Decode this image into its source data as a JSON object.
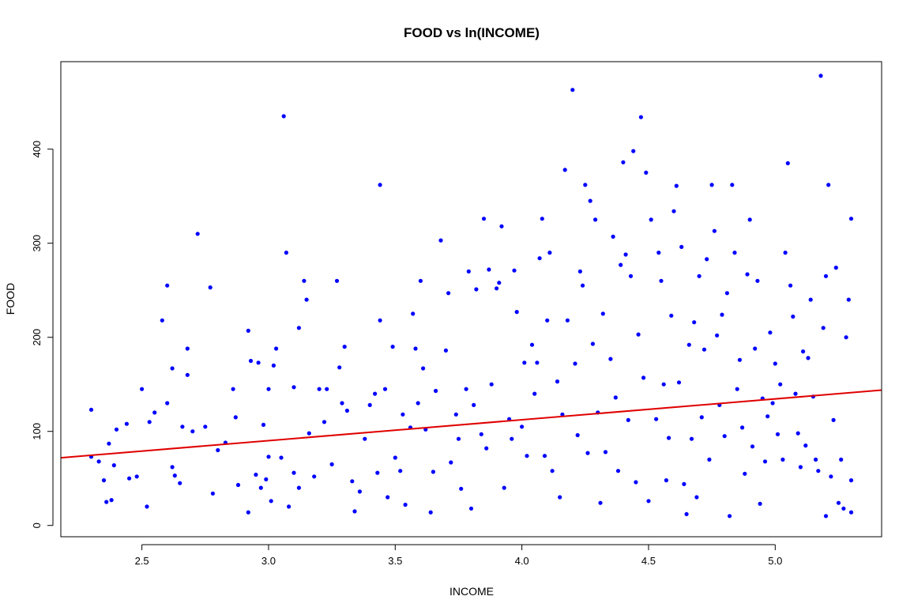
{
  "chart_data": {
    "type": "scatter",
    "title": "FOOD vs ln(INCOME)",
    "xlabel": "INCOME",
    "ylabel": "FOOD",
    "xlim": [
      2.18,
      5.42
    ],
    "ylim": [
      -12,
      493
    ],
    "x_ticks": [
      "2.5",
      "3.0",
      "3.5",
      "4.0",
      "4.5",
      "5.0"
    ],
    "y_ticks": [
      "0",
      "100",
      "200",
      "300",
      "400"
    ],
    "grid": false,
    "legend": "none",
    "point_color": "#0000ff",
    "fit_line": {
      "color": "#e00000",
      "intercept": 23.57,
      "slope": 22.19
    },
    "points": [
      [
        2.3,
        123
      ],
      [
        2.3,
        73
      ],
      [
        2.33,
        68
      ],
      [
        2.35,
        48
      ],
      [
        2.36,
        25
      ],
      [
        2.37,
        87
      ],
      [
        2.38,
        27
      ],
      [
        2.39,
        64
      ],
      [
        2.4,
        102
      ],
      [
        2.44,
        108
      ],
      [
        2.45,
        50
      ],
      [
        2.48,
        52
      ],
      [
        2.5,
        145
      ],
      [
        2.52,
        20
      ],
      [
        2.53,
        110
      ],
      [
        2.55,
        120
      ],
      [
        2.58,
        218
      ],
      [
        2.6,
        255
      ],
      [
        2.6,
        130
      ],
      [
        2.62,
        167
      ],
      [
        2.62,
        62
      ],
      [
        2.63,
        53
      ],
      [
        2.65,
        45
      ],
      [
        2.66,
        105
      ],
      [
        2.68,
        188
      ],
      [
        2.68,
        160
      ],
      [
        2.7,
        100
      ],
      [
        2.72,
        310
      ],
      [
        2.75,
        105
      ],
      [
        2.77,
        253
      ],
      [
        2.78,
        34
      ],
      [
        2.8,
        80
      ],
      [
        2.83,
        88
      ],
      [
        2.86,
        145
      ],
      [
        2.87,
        115
      ],
      [
        2.88,
        43
      ],
      [
        2.92,
        207
      ],
      [
        2.92,
        14
      ],
      [
        2.93,
        175
      ],
      [
        2.95,
        54
      ],
      [
        2.96,
        173
      ],
      [
        2.97,
        40
      ],
      [
        2.98,
        107
      ],
      [
        2.99,
        49
      ],
      [
        3.0,
        73
      ],
      [
        3.0,
        145
      ],
      [
        3.01,
        26
      ],
      [
        3.02,
        170
      ],
      [
        3.03,
        188
      ],
      [
        3.05,
        72
      ],
      [
        3.06,
        435
      ],
      [
        3.07,
        290
      ],
      [
        3.08,
        20
      ],
      [
        3.1,
        147
      ],
      [
        3.1,
        56
      ],
      [
        3.12,
        210
      ],
      [
        3.12,
        40
      ],
      [
        3.14,
        260
      ],
      [
        3.15,
        240
      ],
      [
        3.16,
        98
      ],
      [
        3.18,
        52
      ],
      [
        3.2,
        145
      ],
      [
        3.22,
        110
      ],
      [
        3.23,
        145
      ],
      [
        3.25,
        65
      ],
      [
        3.27,
        260
      ],
      [
        3.28,
        168
      ],
      [
        3.29,
        130
      ],
      [
        3.3,
        190
      ],
      [
        3.31,
        122
      ],
      [
        3.33,
        47
      ],
      [
        3.34,
        15
      ],
      [
        3.36,
        36
      ],
      [
        3.38,
        92
      ],
      [
        3.4,
        128
      ],
      [
        3.42,
        140
      ],
      [
        3.43,
        56
      ],
      [
        3.44,
        362
      ],
      [
        3.44,
        218
      ],
      [
        3.46,
        145
      ],
      [
        3.47,
        30
      ],
      [
        3.49,
        190
      ],
      [
        3.5,
        72
      ],
      [
        3.52,
        58
      ],
      [
        3.53,
        118
      ],
      [
        3.54,
        22
      ],
      [
        3.56,
        104
      ],
      [
        3.57,
        225
      ],
      [
        3.58,
        188
      ],
      [
        3.59,
        130
      ],
      [
        3.6,
        260
      ],
      [
        3.61,
        167
      ],
      [
        3.62,
        102
      ],
      [
        3.64,
        14
      ],
      [
        3.65,
        57
      ],
      [
        3.66,
        143
      ],
      [
        3.68,
        303
      ],
      [
        3.7,
        186
      ],
      [
        3.71,
        247
      ],
      [
        3.72,
        67
      ],
      [
        3.74,
        118
      ],
      [
        3.75,
        92
      ],
      [
        3.76,
        39
      ],
      [
        3.78,
        145
      ],
      [
        3.79,
        270
      ],
      [
        3.8,
        18
      ],
      [
        3.81,
        128
      ],
      [
        3.82,
        251
      ],
      [
        3.84,
        97
      ],
      [
        3.85,
        326
      ],
      [
        3.86,
        82
      ],
      [
        3.87,
        272
      ],
      [
        3.88,
        150
      ],
      [
        3.9,
        252
      ],
      [
        3.91,
        258
      ],
      [
        3.92,
        318
      ],
      [
        3.93,
        40
      ],
      [
        3.95,
        113
      ],
      [
        3.96,
        92
      ],
      [
        3.97,
        271
      ],
      [
        3.98,
        227
      ],
      [
        4.0,
        105
      ],
      [
        4.01,
        173
      ],
      [
        4.02,
        74
      ],
      [
        4.04,
        192
      ],
      [
        4.05,
        140
      ],
      [
        4.06,
        173
      ],
      [
        4.07,
        284
      ],
      [
        4.08,
        326
      ],
      [
        4.09,
        74
      ],
      [
        4.1,
        218
      ],
      [
        4.11,
        290
      ],
      [
        4.12,
        58
      ],
      [
        4.14,
        153
      ],
      [
        4.15,
        30
      ],
      [
        4.16,
        118
      ],
      [
        4.17,
        378
      ],
      [
        4.18,
        218
      ],
      [
        4.2,
        463
      ],
      [
        4.21,
        172
      ],
      [
        4.22,
        96
      ],
      [
        4.23,
        270
      ],
      [
        4.24,
        255
      ],
      [
        4.25,
        362
      ],
      [
        4.26,
        77
      ],
      [
        4.27,
        345
      ],
      [
        4.28,
        193
      ],
      [
        4.29,
        325
      ],
      [
        4.3,
        120
      ],
      [
        4.31,
        24
      ],
      [
        4.32,
        225
      ],
      [
        4.33,
        78
      ],
      [
        4.35,
        177
      ],
      [
        4.36,
        307
      ],
      [
        4.37,
        136
      ],
      [
        4.38,
        58
      ],
      [
        4.39,
        277
      ],
      [
        4.4,
        386
      ],
      [
        4.41,
        288
      ],
      [
        4.42,
        112
      ],
      [
        4.43,
        265
      ],
      [
        4.44,
        398
      ],
      [
        4.45,
        46
      ],
      [
        4.46,
        203
      ],
      [
        4.47,
        434
      ],
      [
        4.48,
        157
      ],
      [
        4.49,
        375
      ],
      [
        4.5,
        26
      ],
      [
        4.51,
        325
      ],
      [
        4.53,
        113
      ],
      [
        4.54,
        290
      ],
      [
        4.55,
        260
      ],
      [
        4.56,
        150
      ],
      [
        4.57,
        48
      ],
      [
        4.58,
        93
      ],
      [
        4.59,
        223
      ],
      [
        4.6,
        334
      ],
      [
        4.61,
        361
      ],
      [
        4.62,
        152
      ],
      [
        4.63,
        296
      ],
      [
        4.64,
        44
      ],
      [
        4.65,
        12
      ],
      [
        4.66,
        192
      ],
      [
        4.67,
        92
      ],
      [
        4.68,
        216
      ],
      [
        4.69,
        30
      ],
      [
        4.7,
        265
      ],
      [
        4.71,
        115
      ],
      [
        4.72,
        187
      ],
      [
        4.73,
        283
      ],
      [
        4.74,
        70
      ],
      [
        4.75,
        362
      ],
      [
        4.76,
        313
      ],
      [
        4.77,
        202
      ],
      [
        4.78,
        128
      ],
      [
        4.79,
        224
      ],
      [
        4.8,
        95
      ],
      [
        4.81,
        247
      ],
      [
        4.82,
        10
      ],
      [
        4.83,
        362
      ],
      [
        4.84,
        290
      ],
      [
        4.85,
        145
      ],
      [
        4.86,
        176
      ],
      [
        4.87,
        104
      ],
      [
        4.88,
        55
      ],
      [
        4.89,
        267
      ],
      [
        4.9,
        325
      ],
      [
        4.91,
        84
      ],
      [
        4.92,
        188
      ],
      [
        4.93,
        260
      ],
      [
        4.94,
        23
      ],
      [
        4.95,
        135
      ],
      [
        4.96,
        68
      ],
      [
        4.97,
        116
      ],
      [
        4.98,
        205
      ],
      [
        4.99,
        130
      ],
      [
        5.0,
        172
      ],
      [
        5.01,
        97
      ],
      [
        5.02,
        150
      ],
      [
        5.03,
        70
      ],
      [
        5.04,
        290
      ],
      [
        5.05,
        385
      ],
      [
        5.06,
        255
      ],
      [
        5.07,
        222
      ],
      [
        5.08,
        140
      ],
      [
        5.09,
        98
      ],
      [
        5.1,
        62
      ],
      [
        5.11,
        185
      ],
      [
        5.12,
        85
      ],
      [
        5.13,
        178
      ],
      [
        5.14,
        240
      ],
      [
        5.15,
        137
      ],
      [
        5.16,
        70
      ],
      [
        5.17,
        58
      ],
      [
        5.18,
        478
      ],
      [
        5.19,
        210
      ],
      [
        5.2,
        265
      ],
      [
        5.2,
        10
      ],
      [
        5.21,
        362
      ],
      [
        5.22,
        52
      ],
      [
        5.23,
        112
      ],
      [
        5.24,
        274
      ],
      [
        5.25,
        24
      ],
      [
        5.26,
        70
      ],
      [
        5.27,
        18
      ],
      [
        5.28,
        200
      ],
      [
        5.29,
        240
      ],
      [
        5.3,
        326
      ],
      [
        5.3,
        48
      ],
      [
        5.3,
        14
      ]
    ]
  }
}
